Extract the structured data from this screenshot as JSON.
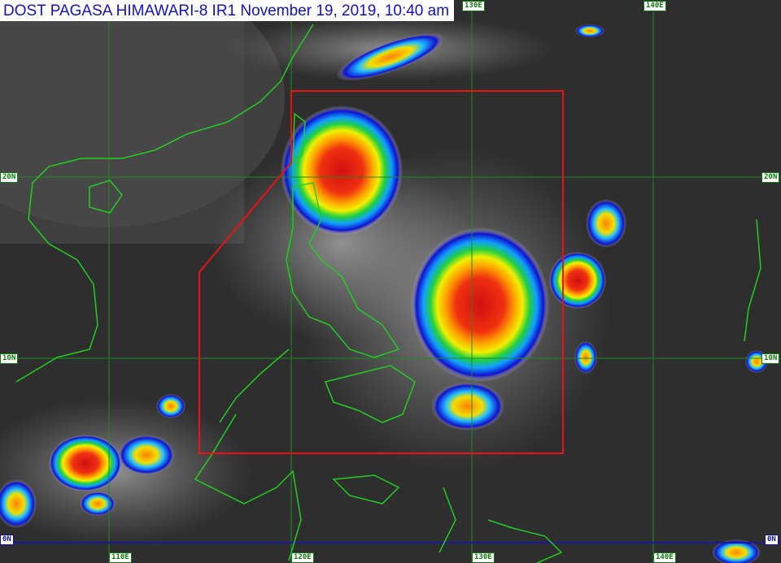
{
  "title": "DOST PAGASA HIMAWARI-8 IR1 November 19, 2019, 10:40 am",
  "grid": {
    "longitudes": [
      "110E",
      "120E",
      "130E",
      "140E"
    ],
    "latitudes": [
      "20N",
      "10N",
      "0N"
    ]
  },
  "colors": {
    "coastline": "#22cc22",
    "grid": "#1f8a1f",
    "equator": "#1a1aa0",
    "area_of_responsibility": "#ee1111"
  }
}
